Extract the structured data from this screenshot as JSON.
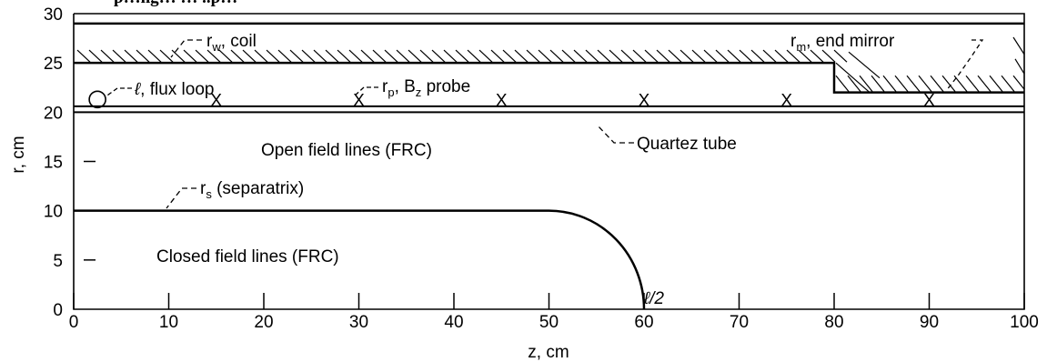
{
  "header_fragment": "p…ng… … ..p…",
  "axes": {
    "xlabel": "z, cm",
    "ylabel": "r, cm",
    "xlim": [
      0,
      100
    ],
    "ylim": [
      0,
      30
    ],
    "xticks": [
      0,
      10,
      20,
      30,
      40,
      50,
      60,
      70,
      80,
      90,
      100
    ],
    "yticks": [
      0,
      5,
      10,
      15,
      20,
      25,
      30
    ],
    "xtick_labels": [
      "0",
      "10",
      "20",
      "30",
      "40",
      "50",
      "60",
      "70",
      "80",
      "90",
      "100"
    ],
    "ytick_labels": [
      "0",
      "5",
      "10",
      "15",
      "20",
      "25",
      "30"
    ]
  },
  "labels": {
    "coil": {
      "main": "r",
      "sub": "w",
      "rest": ", coil"
    },
    "flux_loop": {
      "main": "ℓ",
      "rest": ", flux loop"
    },
    "bz_probe": {
      "main": "r",
      "sub": "p",
      "rest": ", B",
      "sub2": "z",
      "rest2": " probe"
    },
    "end_mirror": {
      "main": "r",
      "sub": "m",
      "rest": ", end mirror"
    },
    "quartz_tube": "Quartez tube",
    "open_field": "Open field lines (FRC)",
    "separatrix": {
      "main": "r",
      "sub": "s",
      "rest": " (separatrix)"
    },
    "closed_field": "Closed field lines (FRC)",
    "half_length": "ℓ/2"
  },
  "geometry": {
    "outer_wall_r": 29,
    "coil_r": 25,
    "mirror_r": 22,
    "mirror_z": 80,
    "tube_r_outer": 20.6,
    "tube_r_inner": 20.0,
    "separatrix_r": 10,
    "separatrix_flat_end_z": 50,
    "separatrix_end_z": 60,
    "probe_r": 21.2,
    "probe_z": [
      15,
      30,
      45,
      60,
      75,
      90
    ],
    "flux_loop_z": 2.5,
    "flux_loop_r": 21.2
  },
  "probe_marker": "X"
}
